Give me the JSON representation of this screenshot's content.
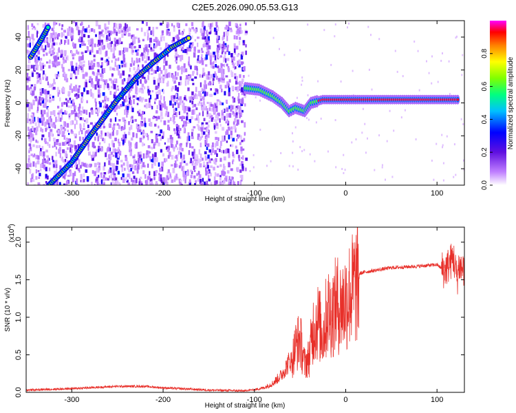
{
  "title": "C2E5.2026.090.05.53.G13",
  "chart_data": [
    {
      "type": "heatmap",
      "name": "spectrogram",
      "xlabel": "Height of straight line (km)",
      "ylabel": "Frequency (Hz)",
      "xlim": [
        -350,
        130
      ],
      "ylim": [
        -50,
        50
      ],
      "xticks": [
        -300,
        -200,
        -100,
        0,
        100
      ],
      "xtick_labels": [
        "-300",
        "-200",
        "-100",
        "0",
        "100"
      ],
      "yticks": [
        -40,
        -20,
        0,
        20,
        40
      ],
      "ytick_labels": [
        "-40",
        "-20",
        "0",
        "20",
        "40"
      ],
      "noise_extent": [
        -350,
        -110
      ],
      "features": [
        {
          "name": "diagonal-line-main",
          "points": [
            [
              -325,
              -50
            ],
            [
              -300,
              -36
            ],
            [
              -280,
              -20
            ],
            [
              -250,
              2
            ],
            [
              -230,
              15
            ],
            [
              -210,
              25
            ],
            [
              -190,
              34
            ],
            [
              -170,
              40
            ]
          ]
        },
        {
          "name": "diagonal-line-upper",
          "points": [
            [
              -345,
              28
            ],
            [
              -335,
              37
            ],
            [
              -325,
              47
            ]
          ]
        },
        {
          "name": "ridge-segment",
          "points": [
            [
              -110,
              9
            ],
            [
              -95,
              8
            ],
            [
              -80,
              4
            ],
            [
              -70,
              0
            ],
            [
              -62,
              -5
            ],
            [
              -55,
              -3
            ],
            [
              -45,
              -5
            ],
            [
              -38,
              0
            ],
            [
              -25,
              2
            ],
            [
              0,
              2
            ],
            [
              60,
              2
            ],
            [
              100,
              2
            ],
            [
              125,
              2
            ]
          ]
        }
      ],
      "colorbar": {
        "label": "Normalized spectral amplitude",
        "range": [
          0,
          1
        ],
        "ticks": [
          0.0,
          0.2,
          0.4,
          0.6,
          0.8
        ],
        "tick_labels": [
          "0.0",
          "0.2",
          "0.4",
          "0.6",
          "0.8"
        ],
        "colors": [
          "#ffffff",
          "#c080ff",
          "#6010e0",
          "#0000ff",
          "#00c0ff",
          "#00ff80",
          "#80ff00",
          "#ffff00",
          "#ff8000",
          "#ff0000",
          "#ff00ff"
        ]
      }
    },
    {
      "type": "line",
      "name": "snr",
      "xlabel": "Height of straight line (km)",
      "ylabel": "SNR (10 * v/v)",
      "scale_label": "(x10",
      "scale_exp": "4",
      "scale_close": ")",
      "xlim": [
        -350,
        130
      ],
      "ylim": [
        0,
        2.2
      ],
      "xticks": [
        -300,
        -200,
        -100,
        0,
        100
      ],
      "xtick_labels": [
        "-300",
        "-200",
        "-100",
        "0",
        "100"
      ],
      "yticks": [
        0.0,
        0.5,
        1.0,
        1.5,
        2.0
      ],
      "ytick_labels": [
        "0.0",
        "0.5",
        "1.0",
        "1.5",
        "2.0"
      ],
      "color": "#e8302a",
      "envelope": [
        [
          -350,
          0.03
        ],
        [
          -300,
          0.05
        ],
        [
          -250,
          0.08
        ],
        [
          -220,
          0.08
        ],
        [
          -200,
          0.06
        ],
        [
          -150,
          0.03
        ],
        [
          -110,
          0.02
        ],
        [
          -100,
          0.03
        ],
        [
          -90,
          0.05
        ],
        [
          -80,
          0.1
        ],
        [
          -70,
          0.2
        ],
        [
          -60,
          0.38
        ],
        [
          -55,
          0.65
        ],
        [
          -50,
          0.75
        ],
        [
          -45,
          0.4
        ],
        [
          -40,
          0.5
        ],
        [
          -35,
          0.95
        ],
        [
          -30,
          1.0
        ],
        [
          -25,
          0.8
        ],
        [
          -20,
          1.15
        ],
        [
          -15,
          1.1
        ],
        [
          -10,
          1.25
        ],
        [
          -5,
          1.2
        ],
        [
          0,
          1.3
        ],
        [
          5,
          1.4
        ],
        [
          10,
          1.5
        ],
        [
          15,
          1.58
        ],
        [
          20,
          1.6
        ],
        [
          30,
          1.62
        ],
        [
          50,
          1.66
        ],
        [
          80,
          1.68
        ],
        [
          100,
          1.7
        ],
        [
          108,
          1.62
        ],
        [
          113,
          1.7
        ],
        [
          118,
          1.8
        ],
        [
          122,
          1.5
        ],
        [
          124,
          1.7
        ],
        [
          126,
          1.65
        ],
        [
          130,
          1.65
        ]
      ]
    }
  ]
}
